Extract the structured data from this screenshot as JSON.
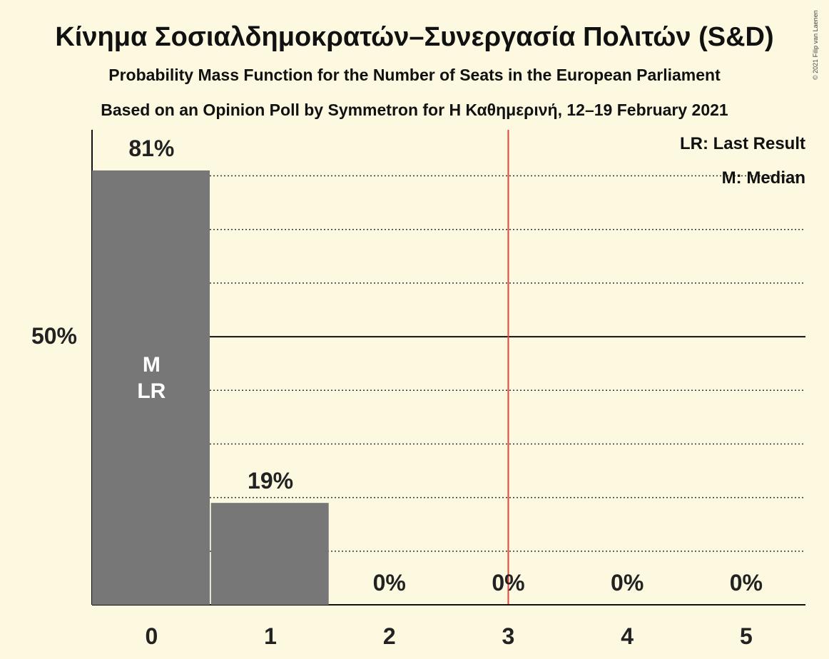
{
  "chart_data": {
    "type": "bar",
    "title": "Κίνημα Σοσιαλδημοκρατών–Συνεργασία Πολιτών (S&D)",
    "subtitle": "Probability Mass Function for the Number of Seats in the European Parliament",
    "subtitle2": "Based on an Opinion Poll by Symmetron for Η Καθημερινή, 12–19 February 2021",
    "categories": [
      "0",
      "1",
      "2",
      "3",
      "4",
      "5"
    ],
    "values": [
      81,
      19,
      0,
      0,
      0,
      0
    ],
    "value_labels": [
      "81%",
      "19%",
      "0%",
      "0%",
      "0%",
      "0%"
    ],
    "ylim": [
      0,
      81
    ],
    "ytick_label": "50%",
    "ytick_value": 50,
    "gridlines": [
      10,
      20,
      30,
      40,
      60,
      70,
      80
    ],
    "majority_line_x": 3.5,
    "bar_color": "#777777",
    "majority_line_color": "#e0453a",
    "in_bar_labels": {
      "median": "M",
      "last_result": "LR",
      "category_index": 0
    },
    "legend": [
      "LR: Last Result",
      "M: Median"
    ],
    "legend_position": "top-right",
    "copyright": "© 2021 Filip van Laenen"
  }
}
